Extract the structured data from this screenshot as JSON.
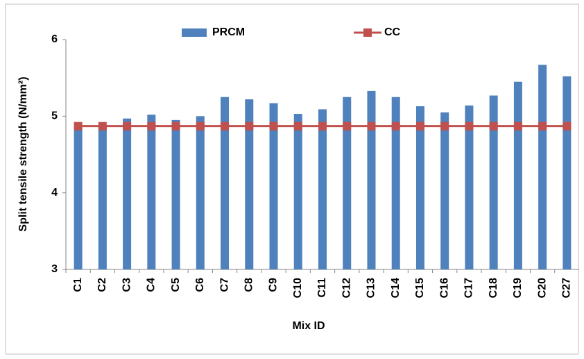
{
  "chart_data": {
    "type": "bar_line",
    "categories": [
      "C1",
      "C2",
      "C3",
      "C4",
      "C5",
      "C6",
      "C7",
      "C8",
      "C9",
      "C10",
      "C11",
      "C12",
      "C13",
      "C14",
      "C15",
      "C16",
      "C17",
      "C18",
      "C19",
      "C20",
      "C27"
    ],
    "series": [
      {
        "name": "PRCM",
        "type": "bar",
        "color": "#4f81bd",
        "values": [
          4.87,
          4.87,
          4.97,
          5.02,
          4.95,
          5.0,
          5.25,
          5.22,
          5.17,
          5.03,
          5.09,
          5.25,
          5.33,
          5.25,
          5.13,
          5.05,
          5.14,
          5.27,
          5.45,
          5.67,
          5.52
        ]
      },
      {
        "name": "CC",
        "type": "line",
        "color": "#c0504d",
        "values": [
          4.87,
          4.87,
          4.87,
          4.87,
          4.87,
          4.87,
          4.87,
          4.87,
          4.87,
          4.87,
          4.87,
          4.87,
          4.87,
          4.87,
          4.87,
          4.87,
          4.87,
          4.87,
          4.87,
          4.87,
          4.87
        ]
      }
    ],
    "ylim": [
      3,
      6
    ],
    "yticks": [
      3,
      4,
      5,
      6
    ],
    "x_label": "Mix ID",
    "y_label": "Split tensile strength (N/mm²)"
  }
}
